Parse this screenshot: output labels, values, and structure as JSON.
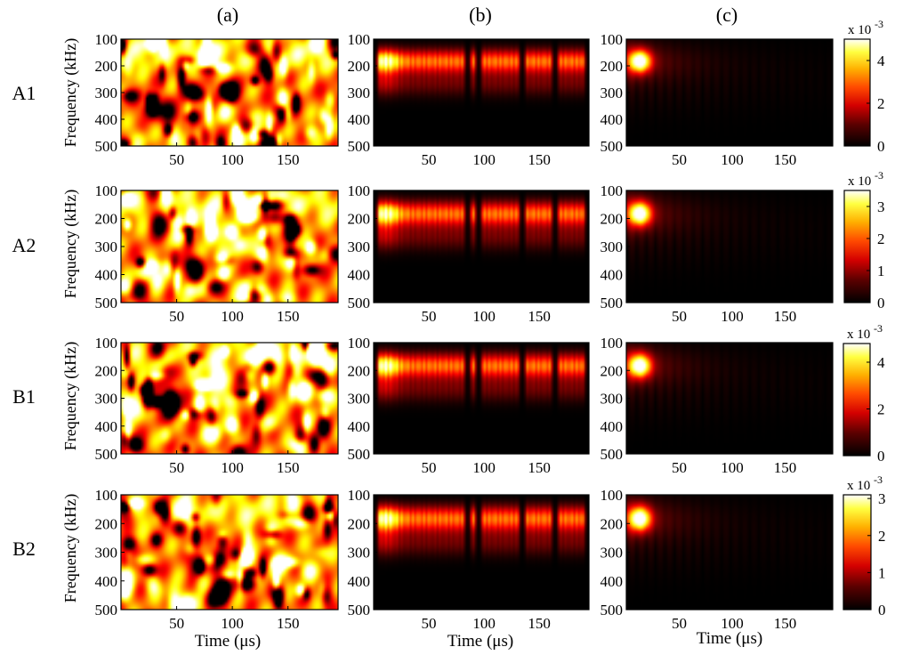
{
  "chart_data": {
    "type": "heatmap",
    "colormap": "hot",
    "column_labels": [
      "(a)",
      "(b)",
      "(c)"
    ],
    "row_labels": [
      "A1",
      "A2",
      "B1",
      "B2"
    ],
    "ylabel": "Frequency (kHz)",
    "xlabel": "Time (μs)",
    "y_range": [
      100,
      500
    ],
    "y_ticks": [
      100,
      200,
      300,
      400,
      500
    ],
    "x_range": [
      0,
      195
    ],
    "x_ticks": [
      50,
      100,
      150
    ],
    "colorbar_scale_label": "x 10",
    "colorbar_scale_exponent": "-3",
    "rows": [
      {
        "label": "A1",
        "colorbar_max": 5.0,
        "colorbar_ticks": [
          0,
          2,
          4
        ]
      },
      {
        "label": "A2",
        "colorbar_max": 3.5,
        "colorbar_ticks": [
          0,
          1,
          2,
          3
        ]
      },
      {
        "label": "B1",
        "colorbar_max": 4.8,
        "colorbar_ticks": [
          0,
          2,
          4
        ]
      },
      {
        "label": "B2",
        "colorbar_max": 3.1,
        "colorbar_ticks": [
          0,
          1,
          2,
          3
        ]
      }
    ],
    "panels": {
      "a": {
        "description": "wavelet scalogram of raw signal",
        "seed": 11
      },
      "b": {
        "ridge_frequency_khz": 180,
        "band_centers_us": [
          5,
          10,
          15,
          20,
          25,
          30,
          35,
          40,
          45,
          50,
          55,
          60,
          65,
          70,
          75,
          80,
          90,
          100,
          105,
          110,
          115,
          120,
          125,
          130,
          140,
          145,
          150,
          155,
          160,
          170,
          175,
          180,
          185,
          190
        ]
      },
      "c": {
        "peak_time_us": 12,
        "peak_frequency_khz": 180
      }
    }
  }
}
